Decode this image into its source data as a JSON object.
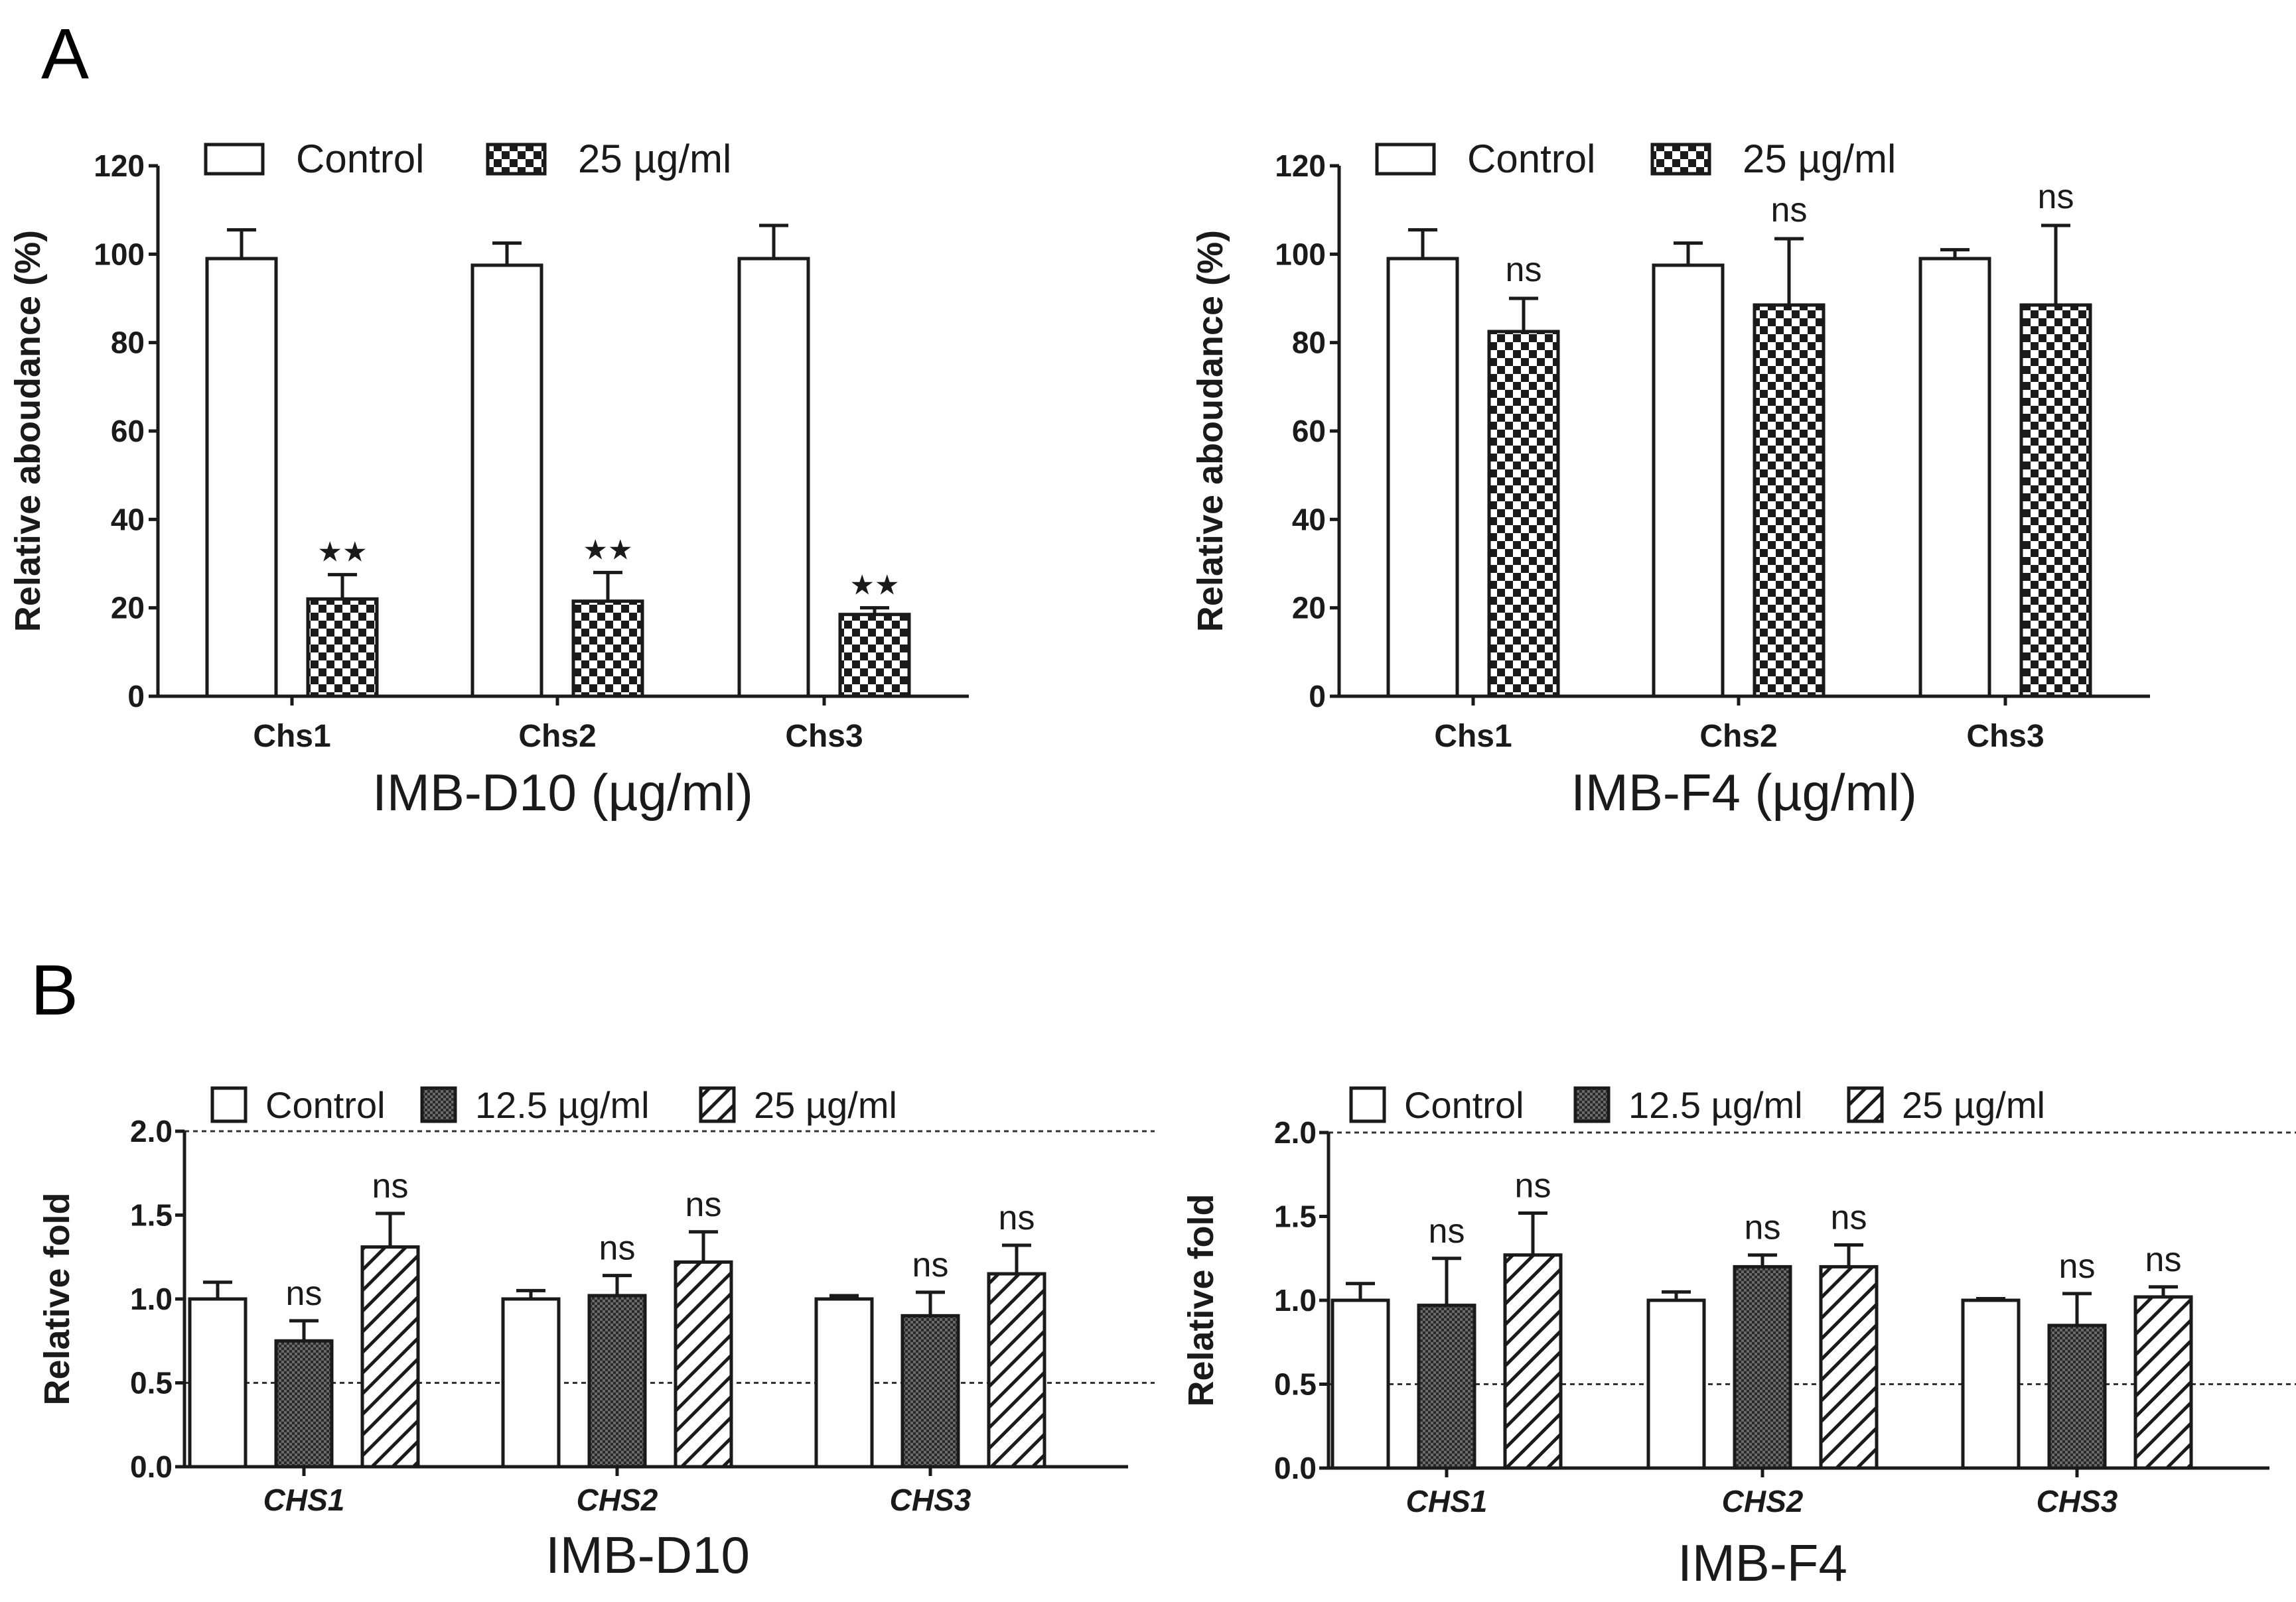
{
  "panel_letters": {
    "a": "A",
    "b": "B"
  },
  "colors": {
    "ink": "#1a1a1a",
    "background": "#ffffff",
    "reference_line": "#333333"
  },
  "chart_data": [
    {
      "id": "A1",
      "panel": "A",
      "type": "bar",
      "title": "",
      "xlabel": "IMB-D10 (µg/ml)",
      "ylabel": "Relative aboudance (%)",
      "ylim": [
        0,
        120
      ],
      "yticks": [
        "0",
        "20",
        "40",
        "60",
        "80",
        "100",
        "120"
      ],
      "ytick_values": [
        0,
        20,
        40,
        60,
        80,
        100,
        120
      ],
      "categories": [
        "Chs1",
        "Chs2",
        "Chs3"
      ],
      "category_style": "bold",
      "legend_position": "top",
      "series": [
        {
          "name": "Control",
          "pattern": "none",
          "values": [
            99,
            97.5,
            99
          ],
          "errors": [
            6.5,
            5,
            7.5
          ]
        },
        {
          "name": "25 µg/ml",
          "pattern": "checker",
          "values": [
            22,
            21.5,
            18.5
          ],
          "errors": [
            5.5,
            6.5,
            1.5
          ]
        }
      ],
      "annotations": [
        {
          "series": 1,
          "category": 0,
          "text": "★★"
        },
        {
          "series": 1,
          "category": 1,
          "text": "★★"
        },
        {
          "series": 1,
          "category": 2,
          "text": "★★"
        }
      ]
    },
    {
      "id": "A2",
      "panel": "A",
      "type": "bar",
      "title": "",
      "xlabel": "IMB-F4 (µg/ml)",
      "ylabel": "Relative aboudance (%)",
      "ylim": [
        0,
        120
      ],
      "yticks": [
        "0",
        "20",
        "40",
        "60",
        "80",
        "100",
        "120"
      ],
      "ytick_values": [
        0,
        20,
        40,
        60,
        80,
        100,
        120
      ],
      "categories": [
        "Chs1",
        "Chs2",
        "Chs3"
      ],
      "category_style": "bold",
      "legend_position": "top",
      "series": [
        {
          "name": "Control",
          "pattern": "none",
          "values": [
            99,
            97.5,
            99
          ],
          "errors": [
            6.5,
            5,
            2
          ]
        },
        {
          "name": "25 µg/ml",
          "pattern": "checker",
          "values": [
            82.5,
            88.5,
            88.5
          ],
          "errors": [
            7.5,
            15,
            18
          ]
        }
      ],
      "annotations": [
        {
          "series": 1,
          "category": 0,
          "text": "ns"
        },
        {
          "series": 1,
          "category": 1,
          "text": "ns"
        },
        {
          "series": 1,
          "category": 2,
          "text": "ns"
        }
      ]
    },
    {
      "id": "B1",
      "panel": "B",
      "type": "bar",
      "title": "",
      "xlabel": "IMB-D10",
      "ylabel": "Relative fold",
      "ylim": [
        0,
        2.0
      ],
      "yticks": [
        "0.0",
        "0.5",
        "1.0",
        "1.5",
        "2.0"
      ],
      "ytick_values": [
        0,
        0.5,
        1.0,
        1.5,
        2.0
      ],
      "reference_lines": [
        0.5,
        2.0
      ],
      "categories": [
        "CHS1",
        "CHS2",
        "CHS3"
      ],
      "category_style": "bold-italic",
      "legend_position": "top",
      "series": [
        {
          "name": "Control",
          "pattern": "none",
          "values": [
            1.0,
            1.0,
            1.0
          ],
          "errors": [
            0.1,
            0.05,
            0.02
          ]
        },
        {
          "name": "12.5 µg/ml",
          "pattern": "dots",
          "values": [
            0.75,
            1.02,
            0.9
          ],
          "errors": [
            0.12,
            0.12,
            0.14
          ]
        },
        {
          "name": "25 µg/ml",
          "pattern": "hatch",
          "values": [
            1.31,
            1.22,
            1.15
          ],
          "errors": [
            0.2,
            0.18,
            0.17
          ]
        }
      ],
      "annotations": [
        {
          "series": 1,
          "category": 0,
          "text": "ns"
        },
        {
          "series": 2,
          "category": 0,
          "text": "ns"
        },
        {
          "series": 1,
          "category": 1,
          "text": "ns"
        },
        {
          "series": 2,
          "category": 1,
          "text": "ns"
        },
        {
          "series": 1,
          "category": 2,
          "text": "ns"
        },
        {
          "series": 2,
          "category": 2,
          "text": "ns"
        }
      ]
    },
    {
      "id": "B2",
      "panel": "B",
      "type": "bar",
      "title": "",
      "xlabel": "IMB-F4",
      "ylabel": "Relative fold",
      "ylim": [
        0,
        2.0
      ],
      "yticks": [
        "0.0",
        "0.5",
        "1.0",
        "1.5",
        "2.0"
      ],
      "ytick_values": [
        0,
        0.5,
        1.0,
        1.5,
        2.0
      ],
      "reference_lines": [
        0.5,
        2.0
      ],
      "categories": [
        "CHS1",
        "CHS2",
        "CHS3"
      ],
      "category_style": "bold-italic",
      "legend_position": "top",
      "series": [
        {
          "name": "Control",
          "pattern": "none",
          "values": [
            1.0,
            1.0,
            1.0
          ],
          "errors": [
            0.1,
            0.05,
            0.01
          ]
        },
        {
          "name": "12.5 µg/ml",
          "pattern": "dots",
          "values": [
            0.97,
            1.2,
            0.85
          ],
          "errors": [
            0.28,
            0.07,
            0.19
          ]
        },
        {
          "name": "25 µg/ml",
          "pattern": "hatch",
          "values": [
            1.27,
            1.2,
            1.02
          ],
          "errors": [
            0.25,
            0.13,
            0.06
          ]
        }
      ],
      "annotations": [
        {
          "series": 1,
          "category": 0,
          "text": "ns"
        },
        {
          "series": 2,
          "category": 0,
          "text": "ns"
        },
        {
          "series": 1,
          "category": 1,
          "text": "ns"
        },
        {
          "series": 2,
          "category": 1,
          "text": "ns"
        },
        {
          "series": 1,
          "category": 2,
          "text": "ns"
        },
        {
          "series": 2,
          "category": 2,
          "text": "ns"
        }
      ]
    }
  ]
}
